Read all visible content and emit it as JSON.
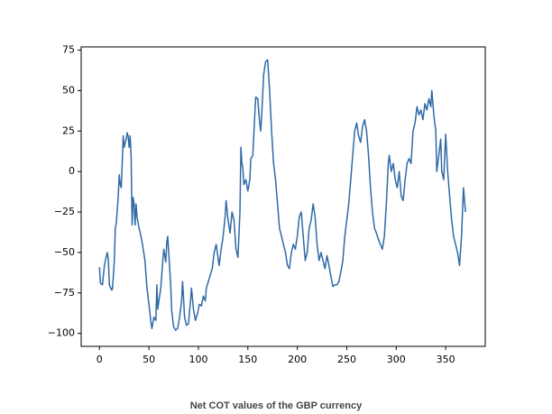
{
  "chart_data": {
    "type": "line",
    "caption": "Net COT values of the GBP currency",
    "color": "#2f6aa6",
    "x": [
      0,
      1,
      3,
      5,
      7,
      8,
      9,
      10,
      12,
      13,
      14,
      15,
      16,
      17,
      19,
      20,
      21,
      22,
      23,
      24,
      25,
      26,
      27,
      28,
      29,
      30,
      31,
      32,
      33,
      34,
      35,
      36,
      37,
      38,
      40,
      42,
      44,
      46,
      48,
      50,
      52,
      53,
      55,
      57,
      58,
      59,
      60,
      62,
      64,
      65,
      67,
      68,
      69,
      70,
      72,
      73,
      75,
      77,
      79,
      81,
      83,
      84,
      85,
      86,
      88,
      90,
      92,
      93,
      95,
      97,
      99,
      101,
      103,
      105,
      107,
      108,
      110,
      112,
      114,
      116,
      118,
      120,
      121,
      123,
      125,
      127,
      128,
      130,
      132,
      134,
      136,
      138,
      140,
      142,
      143,
      144,
      145,
      146,
      148,
      150,
      152,
      153,
      155,
      157,
      158,
      160,
      162,
      163,
      164,
      166,
      168,
      170,
      172,
      174,
      176,
      178,
      180,
      182,
      184,
      186,
      188,
      190,
      192,
      194,
      196,
      198,
      200,
      202,
      204,
      206,
      208,
      210,
      212,
      214,
      216,
      218,
      220,
      222,
      224,
      226,
      228,
      230,
      232,
      234,
      236,
      238,
      240,
      242,
      244,
      246,
      248,
      250,
      252,
      254,
      256,
      258,
      260,
      262,
      264,
      266,
      268,
      270,
      272,
      274,
      276,
      278,
      280,
      282,
      284,
      286,
      288,
      290,
      292,
      293,
      295,
      297,
      299,
      301,
      303,
      305,
      307,
      309,
      311,
      313,
      315,
      317,
      319,
      321,
      323,
      325,
      327,
      329,
      331,
      333,
      335,
      336,
      338,
      340,
      341,
      343,
      345,
      346,
      348,
      350,
      352,
      354,
      356,
      358,
      360,
      362,
      364,
      366,
      368,
      370
    ],
    "values": [
      -59,
      -69,
      -70,
      -58,
      -52,
      -50,
      -55,
      -70,
      -73,
      -73,
      -65,
      -55,
      -35,
      -32,
      -15,
      -2,
      -8,
      -10,
      5,
      22,
      15,
      18,
      20,
      24,
      22,
      15,
      22,
      10,
      -33,
      -16,
      -20,
      -33,
      -20,
      -28,
      -35,
      -40,
      -47,
      -55,
      -72,
      -82,
      -93,
      -97,
      -90,
      -92,
      -70,
      -85,
      -80,
      -72,
      -55,
      -48,
      -56,
      -44,
      -40,
      -50,
      -70,
      -86,
      -96,
      -98,
      -97,
      -90,
      -80,
      -68,
      -78,
      -90,
      -95,
      -94,
      -80,
      -72,
      -85,
      -92,
      -88,
      -82,
      -83,
      -77,
      -80,
      -72,
      -68,
      -64,
      -60,
      -50,
      -45,
      -54,
      -58,
      -48,
      -40,
      -28,
      -18,
      -30,
      -38,
      -25,
      -30,
      -48,
      -53,
      -25,
      15,
      5,
      2,
      -8,
      -5,
      -12,
      -5,
      8,
      10,
      35,
      46,
      45,
      30,
      25,
      35,
      60,
      68,
      69,
      50,
      25,
      5,
      -5,
      -20,
      -35,
      -40,
      -45,
      -50,
      -58,
      -60,
      -50,
      -45,
      -48,
      -40,
      -28,
      -25,
      -40,
      -55,
      -50,
      -35,
      -30,
      -20,
      -28,
      -45,
      -55,
      -50,
      -55,
      -60,
      -52,
      -58,
      -65,
      -71,
      -70,
      -70,
      -68,
      -62,
      -55,
      -40,
      -30,
      -20,
      -5,
      10,
      25,
      30,
      22,
      18,
      28,
      32,
      25,
      10,
      -10,
      -25,
      -35,
      -38,
      -42,
      -45,
      -48,
      -40,
      -20,
      5,
      10,
      0,
      5,
      -5,
      -10,
      0,
      -15,
      -18,
      -5,
      5,
      8,
      5,
      25,
      30,
      40,
      35,
      38,
      32,
      42,
      38,
      45,
      40,
      50,
      35,
      25,
      0,
      10,
      20,
      0,
      -5,
      23,
      0,
      -15,
      -30,
      -40,
      -45,
      -50,
      -58,
      -40,
      -10,
      -25
    ],
    "xlim": [
      -18.5,
      390
    ],
    "ylim": [
      -108,
      77
    ],
    "xticks": [
      0,
      50,
      100,
      150,
      200,
      250,
      300,
      350
    ],
    "yticks": [
      {
        "value": -100,
        "label": "−100"
      },
      {
        "value": -75,
        "label": "−75"
      },
      {
        "value": -50,
        "label": "−50"
      },
      {
        "value": -25,
        "label": "−25"
      },
      0,
      25,
      50,
      75
    ]
  }
}
